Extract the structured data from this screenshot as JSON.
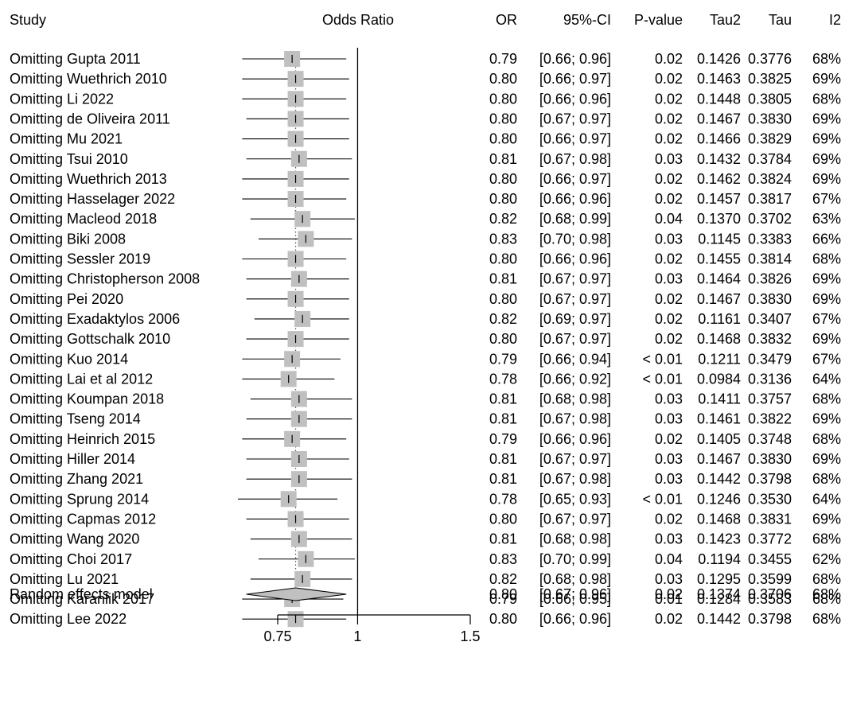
{
  "headers": {
    "study": "Study",
    "plot": "Odds Ratio",
    "or": "OR",
    "ci": "95%-CI",
    "p": "P-value",
    "tau2": "Tau2",
    "tau": "Tau",
    "i2": "I2"
  },
  "chart_data": {
    "type": "forest",
    "xscale": "log",
    "xlim": [
      0.75,
      1.5
    ],
    "xticks": [
      0.75,
      1,
      1.5
    ],
    "xtick_labels": [
      "0.75",
      "1",
      "1.5"
    ],
    "reference_line": 1,
    "pooled_line": 0.8,
    "marker_color": "#c0c0c0",
    "diamond_color": "#c0c0c0",
    "rows": [
      {
        "label": "Omitting Gupta 2011",
        "or": 0.79,
        "lo": 0.66,
        "hi": 0.96,
        "or_text": "0.79",
        "ci_text": "[0.66; 0.96]",
        "p_text": "0.02",
        "tau2_text": "0.1426",
        "tau_text": "0.3776",
        "i2_text": "68%"
      },
      {
        "label": "Omitting Wuethrich 2010",
        "or": 0.8,
        "lo": 0.66,
        "hi": 0.97,
        "or_text": "0.80",
        "ci_text": "[0.66; 0.97]",
        "p_text": "0.02",
        "tau2_text": "0.1463",
        "tau_text": "0.3825",
        "i2_text": "69%"
      },
      {
        "label": "Omitting Li 2022",
        "or": 0.8,
        "lo": 0.66,
        "hi": 0.96,
        "or_text": "0.80",
        "ci_text": "[0.66; 0.96]",
        "p_text": "0.02",
        "tau2_text": "0.1448",
        "tau_text": "0.3805",
        "i2_text": "68%"
      },
      {
        "label": "Omitting de Oliveira 2011",
        "or": 0.8,
        "lo": 0.67,
        "hi": 0.97,
        "or_text": "0.80",
        "ci_text": "[0.67; 0.97]",
        "p_text": "0.02",
        "tau2_text": "0.1467",
        "tau_text": "0.3830",
        "i2_text": "69%"
      },
      {
        "label": "Omitting Mu 2021",
        "or": 0.8,
        "lo": 0.66,
        "hi": 0.97,
        "or_text": "0.80",
        "ci_text": "[0.66; 0.97]",
        "p_text": "0.02",
        "tau2_text": "0.1466",
        "tau_text": "0.3829",
        "i2_text": "69%"
      },
      {
        "label": "Omitting Tsui 2010",
        "or": 0.81,
        "lo": 0.67,
        "hi": 0.98,
        "or_text": "0.81",
        "ci_text": "[0.67; 0.98]",
        "p_text": "0.03",
        "tau2_text": "0.1432",
        "tau_text": "0.3784",
        "i2_text": "69%"
      },
      {
        "label": "Omitting Wuethrich 2013",
        "or": 0.8,
        "lo": 0.66,
        "hi": 0.97,
        "or_text": "0.80",
        "ci_text": "[0.66; 0.97]",
        "p_text": "0.02",
        "tau2_text": "0.1462",
        "tau_text": "0.3824",
        "i2_text": "69%"
      },
      {
        "label": "Omitting Hasselager 2022",
        "or": 0.8,
        "lo": 0.66,
        "hi": 0.96,
        "or_text": "0.80",
        "ci_text": "[0.66; 0.96]",
        "p_text": "0.02",
        "tau2_text": "0.1457",
        "tau_text": "0.3817",
        "i2_text": "67%"
      },
      {
        "label": "Omitting Macleod 2018",
        "or": 0.82,
        "lo": 0.68,
        "hi": 0.99,
        "or_text": "0.82",
        "ci_text": "[0.68; 0.99]",
        "p_text": "0.04",
        "tau2_text": "0.1370",
        "tau_text": "0.3702",
        "i2_text": "63%"
      },
      {
        "label": "Omitting Biki 2008",
        "or": 0.83,
        "lo": 0.7,
        "hi": 0.98,
        "or_text": "0.83",
        "ci_text": "[0.70; 0.98]",
        "p_text": "0.03",
        "tau2_text": "0.1145",
        "tau_text": "0.3383",
        "i2_text": "66%"
      },
      {
        "label": "Omitting Sessler 2019",
        "or": 0.8,
        "lo": 0.66,
        "hi": 0.96,
        "or_text": "0.80",
        "ci_text": "[0.66; 0.96]",
        "p_text": "0.02",
        "tau2_text": "0.1455",
        "tau_text": "0.3814",
        "i2_text": "68%"
      },
      {
        "label": "Omitting Christopherson 2008",
        "or": 0.81,
        "lo": 0.67,
        "hi": 0.97,
        "or_text": "0.81",
        "ci_text": "[0.67; 0.97]",
        "p_text": "0.03",
        "tau2_text": "0.1464",
        "tau_text": "0.3826",
        "i2_text": "69%"
      },
      {
        "label": "Omitting Pei 2020",
        "or": 0.8,
        "lo": 0.67,
        "hi": 0.97,
        "or_text": "0.80",
        "ci_text": "[0.67; 0.97]",
        "p_text": "0.02",
        "tau2_text": "0.1467",
        "tau_text": "0.3830",
        "i2_text": "69%"
      },
      {
        "label": "Omitting Exadaktylos 2006",
        "or": 0.82,
        "lo": 0.69,
        "hi": 0.97,
        "or_text": "0.82",
        "ci_text": "[0.69; 0.97]",
        "p_text": "0.02",
        "tau2_text": "0.1161",
        "tau_text": "0.3407",
        "i2_text": "67%"
      },
      {
        "label": "Omitting Gottschalk 2010",
        "or": 0.8,
        "lo": 0.67,
        "hi": 0.97,
        "or_text": "0.80",
        "ci_text": "[0.67; 0.97]",
        "p_text": "0.02",
        "tau2_text": "0.1468",
        "tau_text": "0.3832",
        "i2_text": "69%"
      },
      {
        "label": "Omitting Kuo 2014",
        "or": 0.79,
        "lo": 0.66,
        "hi": 0.94,
        "or_text": "0.79",
        "ci_text": "[0.66; 0.94]",
        "p_text": "< 0.01",
        "tau2_text": "0.1211",
        "tau_text": "0.3479",
        "i2_text": "67%"
      },
      {
        "label": "Omitting Lai et al 2012",
        "or": 0.78,
        "lo": 0.66,
        "hi": 0.92,
        "or_text": "0.78",
        "ci_text": "[0.66; 0.92]",
        "p_text": "< 0.01",
        "tau2_text": "0.0984",
        "tau_text": "0.3136",
        "i2_text": "64%"
      },
      {
        "label": "Omitting Koumpan 2018",
        "or": 0.81,
        "lo": 0.68,
        "hi": 0.98,
        "or_text": "0.81",
        "ci_text": "[0.68; 0.98]",
        "p_text": "0.03",
        "tau2_text": "0.1411",
        "tau_text": "0.3757",
        "i2_text": "68%"
      },
      {
        "label": "Omitting Tseng 2014",
        "or": 0.81,
        "lo": 0.67,
        "hi": 0.98,
        "or_text": "0.81",
        "ci_text": "[0.67; 0.98]",
        "p_text": "0.03",
        "tau2_text": "0.1461",
        "tau_text": "0.3822",
        "i2_text": "69%"
      },
      {
        "label": "Omitting Heinrich 2015",
        "or": 0.79,
        "lo": 0.66,
        "hi": 0.96,
        "or_text": "0.79",
        "ci_text": "[0.66; 0.96]",
        "p_text": "0.02",
        "tau2_text": "0.1405",
        "tau_text": "0.3748",
        "i2_text": "68%"
      },
      {
        "label": "Omitting Hiller 2014",
        "or": 0.81,
        "lo": 0.67,
        "hi": 0.97,
        "or_text": "0.81",
        "ci_text": "[0.67; 0.97]",
        "p_text": "0.03",
        "tau2_text": "0.1467",
        "tau_text": "0.3830",
        "i2_text": "69%"
      },
      {
        "label": "Omitting Zhang 2021",
        "or": 0.81,
        "lo": 0.67,
        "hi": 0.98,
        "or_text": "0.81",
        "ci_text": "[0.67; 0.98]",
        "p_text": "0.03",
        "tau2_text": "0.1442",
        "tau_text": "0.3798",
        "i2_text": "68%"
      },
      {
        "label": "Omitting Sprung 2014",
        "or": 0.78,
        "lo": 0.65,
        "hi": 0.93,
        "or_text": "0.78",
        "ci_text": "[0.65; 0.93]",
        "p_text": "< 0.01",
        "tau2_text": "0.1246",
        "tau_text": "0.3530",
        "i2_text": "64%"
      },
      {
        "label": "Omitting Capmas 2012",
        "or": 0.8,
        "lo": 0.67,
        "hi": 0.97,
        "or_text": "0.80",
        "ci_text": "[0.67; 0.97]",
        "p_text": "0.02",
        "tau2_text": "0.1468",
        "tau_text": "0.3831",
        "i2_text": "69%"
      },
      {
        "label": "Omitting Wang 2020",
        "or": 0.81,
        "lo": 0.68,
        "hi": 0.98,
        "or_text": "0.81",
        "ci_text": "[0.68; 0.98]",
        "p_text": "0.03",
        "tau2_text": "0.1423",
        "tau_text": "0.3772",
        "i2_text": "68%"
      },
      {
        "label": "Omitting Choi 2017",
        "or": 0.83,
        "lo": 0.7,
        "hi": 0.99,
        "or_text": "0.83",
        "ci_text": "[0.70; 0.99]",
        "p_text": "0.04",
        "tau2_text": "0.1194",
        "tau_text": "0.3455",
        "i2_text": "62%"
      },
      {
        "label": "Omitting Lu 2021",
        "or": 0.82,
        "lo": 0.68,
        "hi": 0.98,
        "or_text": "0.82",
        "ci_text": "[0.68; 0.98]",
        "p_text": "0.03",
        "tau2_text": "0.1295",
        "tau_text": "0.3599",
        "i2_text": "68%"
      },
      {
        "label": "Omitting Karanlik 2017",
        "or": 0.79,
        "lo": 0.66,
        "hi": 0.95,
        "or_text": "0.79",
        "ci_text": "[0.66; 0.95]",
        "p_text": "0.01",
        "tau2_text": "0.1284",
        "tau_text": "0.3583",
        "i2_text": "68%"
      },
      {
        "label": "Omitting Lee 2022",
        "or": 0.8,
        "lo": 0.66,
        "hi": 0.96,
        "or_text": "0.80",
        "ci_text": "[0.66; 0.96]",
        "p_text": "0.02",
        "tau2_text": "0.1442",
        "tau_text": "0.3798",
        "i2_text": "68%"
      }
    ],
    "pooled": {
      "label": "Random effects model",
      "or": 0.8,
      "lo": 0.67,
      "hi": 0.96,
      "or_text": "0.80",
      "ci_text": "[0.67; 0.96]",
      "p_text": "0.02",
      "tau2_text": "0.1374",
      "tau_text": "0.3706",
      "i2_text": "68%"
    }
  }
}
